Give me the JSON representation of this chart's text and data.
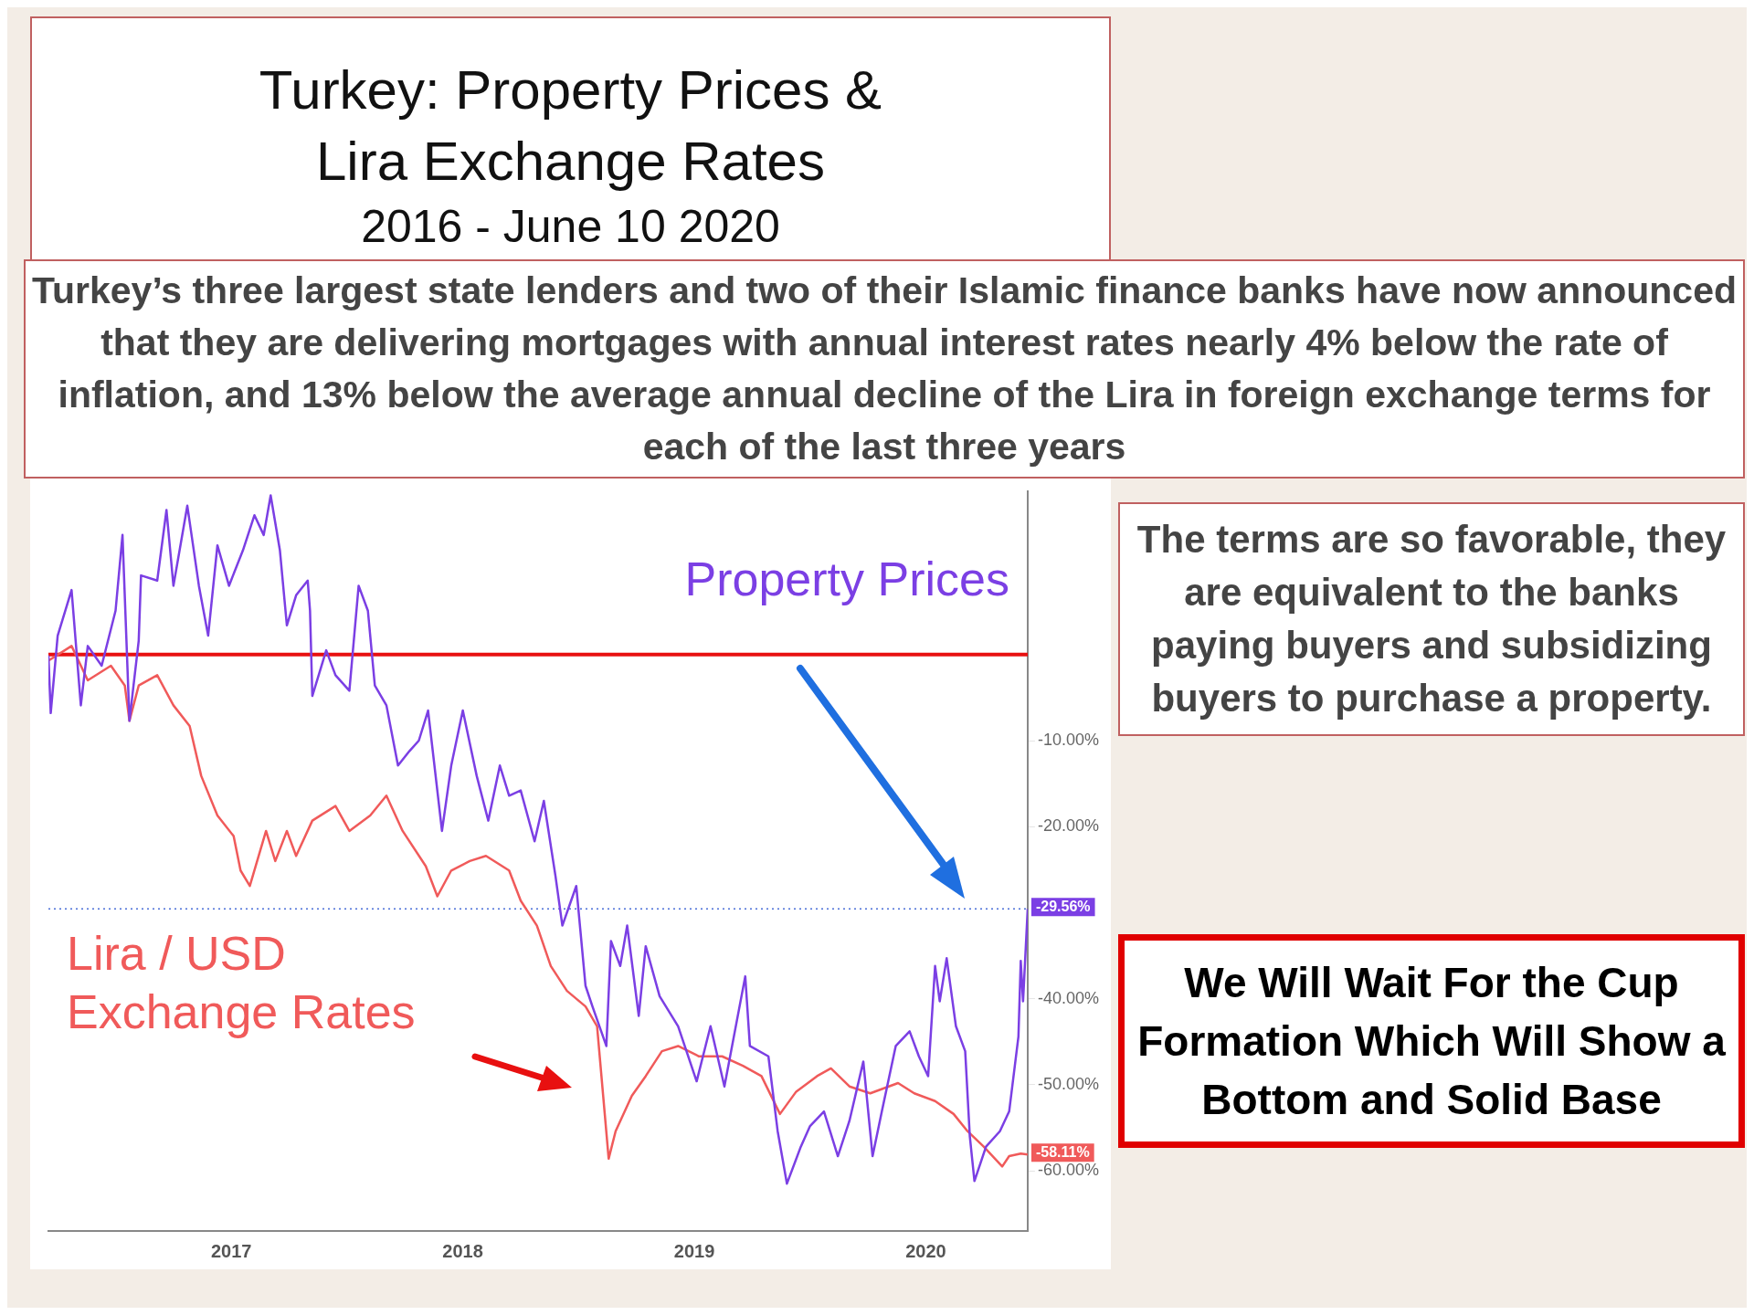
{
  "chart_data": {
    "type": "line",
    "title": "Turkey: Property Prices & Lira Exchange Rates",
    "subtitle": "2016 - June 10 2020",
    "annotations": [
      "Turkey’s three largest state lenders and two of their Islamic finance banks have now announced that they are delivering mortgages with annual interest rates nearly 4% below the rate of inflation, and 13% below the average annual decline of the Lira in foreign exchange terms for each of the last three years",
      "The terms are so favorable, they are equivalent to the banks paying buyers and subsidizing buyers to purchase a property.",
      "We Will Wait For the Cup Formation Which Will Show a Bottom and Solid Base",
      {
        "text": "-29.56%",
        "x": 2020.44,
        "y": -29.56
      },
      {
        "text": "-58.11%",
        "x": 2020.44,
        "y": -58.11
      }
    ],
    "xlim": [
      2016.21,
      2020.44
    ],
    "xticks": [
      2017,
      2018,
      2019,
      2020
    ],
    "ylim": [
      -67,
      19
    ],
    "yticks": [
      {
        "value": -10,
        "label": "-10.00%"
      },
      {
        "value": -20,
        "label": "-20.00%"
      },
      {
        "value": -40,
        "label": "-40.00%"
      },
      {
        "value": -50,
        "label": "-50.00%"
      },
      {
        "value": -60,
        "label": "-60.00%"
      }
    ],
    "grid": false,
    "legend": false,
    "marker": "none",
    "line_style": "solid",
    "ref_lines": [
      {
        "axis": "y",
        "value": 0,
        "color": "#e81010",
        "line_style": "solid"
      },
      {
        "axis": "y",
        "value": -29.56,
        "color": "#4a6fd8",
        "line_style": "dotted"
      }
    ],
    "series": [
      {
        "name": "Property Prices",
        "color": "#7b3fe4",
        "x": [
          2016.21,
          2016.22,
          2016.25,
          2016.31,
          2016.35,
          2016.38,
          2016.44,
          2016.5,
          2016.53,
          2016.56,
          2016.6,
          2016.61,
          2016.68,
          2016.72,
          2016.75,
          2016.81,
          2016.86,
          2016.9,
          2016.94,
          2016.99,
          2017.05,
          2017.1,
          2017.14,
          2017.17,
          2017.21,
          2017.24,
          2017.28,
          2017.33,
          2017.34,
          2017.35,
          2017.41,
          2017.45,
          2017.51,
          2017.55,
          2017.59,
          2017.62,
          2017.67,
          2017.72,
          2017.77,
          2017.81,
          2017.85,
          2017.91,
          2017.95,
          2018.0,
          2018.06,
          2018.11,
          2018.16,
          2018.2,
          2018.25,
          2018.31,
          2018.35,
          2018.4,
          2018.43,
          2018.49,
          2018.53,
          2018.56,
          2018.62,
          2018.64,
          2018.68,
          2018.71,
          2018.76,
          2018.79,
          2018.85,
          2018.93,
          2019.01,
          2019.07,
          2019.13,
          2019.22,
          2019.24,
          2019.32,
          2019.36,
          2019.4,
          2019.46,
          2019.5,
          2019.56,
          2019.62,
          2019.67,
          2019.73,
          2019.77,
          2019.81,
          2019.87,
          2019.93,
          2019.97,
          2020.01,
          2020.04,
          2020.06,
          2020.09,
          2020.13,
          2020.17,
          2020.19,
          2020.21,
          2020.26,
          2020.32,
          2020.36,
          2020.4,
          2020.41,
          2020.42,
          2020.44
        ],
        "values": [
          -0.1,
          -6.8,
          2.2,
          7.5,
          -5.9,
          1.0,
          -1.3,
          5.1,
          13.9,
          -7.7,
          1.6,
          9.2,
          8.6,
          16.8,
          8.0,
          17.3,
          8.0,
          2.2,
          12.7,
          8.0,
          12.1,
          16.2,
          13.9,
          18.5,
          12.1,
          3.4,
          6.9,
          8.6,
          5.1,
          -4.8,
          0.5,
          -2.4,
          -4.2,
          8.0,
          5.1,
          -3.6,
          -5.9,
          -12.9,
          -11.2,
          -10.0,
          -6.5,
          -20.5,
          -12.9,
          -6.5,
          -14.1,
          -19.3,
          -12.9,
          -16.4,
          -15.8,
          -21.7,
          -17.0,
          -25.7,
          -31.5,
          -26.9,
          -38.5,
          -40.9,
          -45.5,
          -33.3,
          -36.2,
          -31.5,
          -42.0,
          -33.9,
          -39.7,
          -43.2,
          -49.6,
          -43.2,
          -50.2,
          -37.4,
          -45.5,
          -46.7,
          -55.4,
          -61.5,
          -57.2,
          -54.8,
          -53.1,
          -58.3,
          -54.2,
          -47.3,
          -58.3,
          -53.1,
          -45.5,
          -43.8,
          -46.7,
          -49.0,
          -36.2,
          -40.3,
          -35.3,
          -43.2,
          -46.1,
          -56.0,
          -61.2,
          -57.2,
          -55.4,
          -53.1,
          -44.4,
          -35.6,
          -40.3,
          -29.56
        ]
      },
      {
        "name": "Lira / USD Exchange Rates",
        "color": "#f05a5a",
        "x": [
          2016.21,
          2016.31,
          2016.38,
          2016.48,
          2016.54,
          2016.56,
          2016.6,
          2016.68,
          2016.75,
          2016.82,
          2016.87,
          2016.94,
          2017.01,
          2017.04,
          2017.08,
          2017.15,
          2017.19,
          2017.24,
          2017.28,
          2017.35,
          2017.45,
          2017.51,
          2017.6,
          2017.67,
          2017.74,
          2017.84,
          2017.89,
          2017.95,
          2018.03,
          2018.1,
          2018.2,
          2018.25,
          2018.32,
          2018.38,
          2018.45,
          2018.53,
          2018.58,
          2018.63,
          2018.66,
          2018.73,
          2018.79,
          2018.86,
          2018.93,
          2019.02,
          2019.12,
          2019.21,
          2019.29,
          2019.37,
          2019.44,
          2019.53,
          2019.59,
          2019.67,
          2019.76,
          2019.88,
          2019.95,
          2020.04,
          2020.12,
          2020.18,
          2020.25,
          2020.33,
          2020.36,
          2020.41,
          2020.44
        ],
        "values": [
          -0.7,
          1.0,
          -3.0,
          -1.3,
          -3.6,
          -7.7,
          -3.6,
          -2.4,
          -5.9,
          -8.3,
          -14.1,
          -18.7,
          -21.1,
          -25.1,
          -26.9,
          -20.5,
          -24.0,
          -20.5,
          -23.4,
          -19.3,
          -17.6,
          -20.5,
          -18.7,
          -16.4,
          -20.5,
          -24.6,
          -28.1,
          -25.1,
          -24.0,
          -23.4,
          -25.1,
          -28.6,
          -31.5,
          -36.2,
          -39.1,
          -40.9,
          -43.2,
          -58.6,
          -55.4,
          -51.3,
          -49.0,
          -46.1,
          -45.5,
          -46.7,
          -46.7,
          -47.8,
          -49.0,
          -53.4,
          -50.8,
          -49.0,
          -48.1,
          -50.2,
          -51.0,
          -49.8,
          -51.0,
          -51.9,
          -53.4,
          -55.4,
          -57.2,
          -59.5,
          -58.3,
          -58.0,
          -58.11
        ]
      }
    ]
  }
}
